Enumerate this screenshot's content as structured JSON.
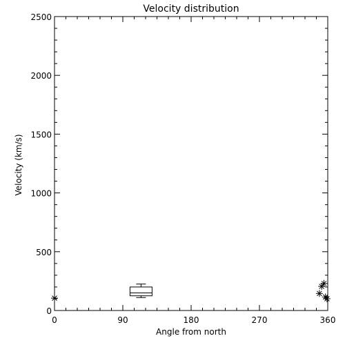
{
  "chart_data": {
    "type": "scatter",
    "title": "Velocity distribution",
    "xlabel": "Angle from north",
    "ylabel": "Velocity (km/s)",
    "xlim": [
      0,
      360
    ],
    "ylim": [
      0,
      2500
    ],
    "xticks": [
      0,
      90,
      180,
      270,
      360
    ],
    "xtick_labels": [
      "0",
      "90",
      "180",
      "270",
      "360"
    ],
    "yticks": [
      0,
      500,
      1000,
      1500,
      2000,
      2500
    ],
    "ytick_labels": [
      "0",
      "500",
      "1000",
      "1500",
      "2000",
      "2500"
    ],
    "grid": false,
    "points": [
      {
        "x": 0,
        "y": 105
      },
      {
        "x": 349,
        "y": 145
      },
      {
        "x": 352,
        "y": 205
      },
      {
        "x": 355,
        "y": 230
      },
      {
        "x": 357,
        "y": 115
      },
      {
        "x": 359,
        "y": 100
      }
    ],
    "boxplot": {
      "x": 114,
      "whisker_low": 110,
      "q1": 125,
      "q3": 200,
      "median": 150,
      "whisker_high": 225
    }
  }
}
